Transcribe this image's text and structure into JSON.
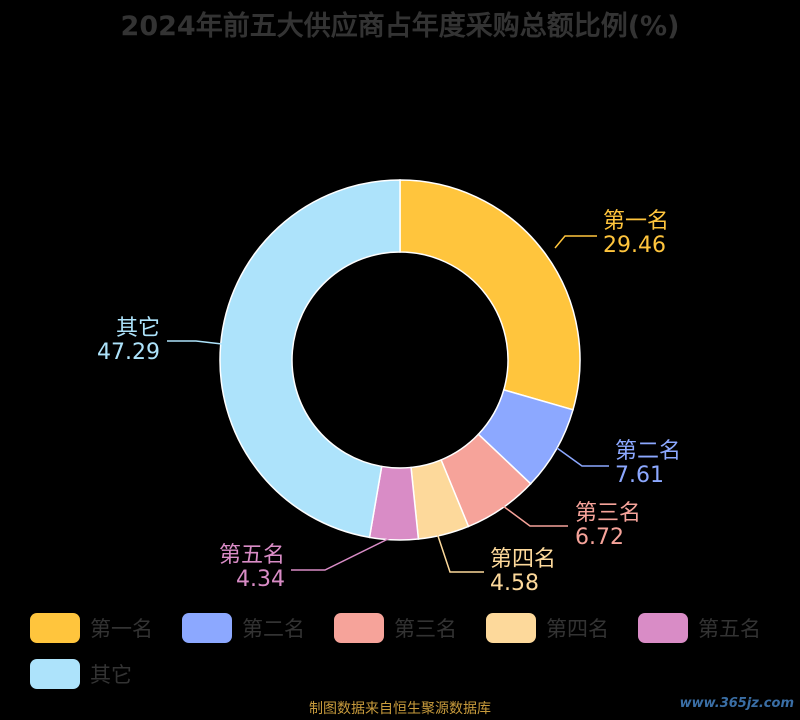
{
  "chart_data": {
    "type": "pie",
    "title": "2024年前五大供应商占年度采购总额比例(%)",
    "categories": [
      "第一名",
      "第二名",
      "第三名",
      "第四名",
      "第五名",
      "其它"
    ],
    "values": [
      29.46,
      7.61,
      6.72,
      4.58,
      4.34,
      47.29
    ],
    "colors": [
      "#ffc53d",
      "#8ca8ff",
      "#f6a39a",
      "#fdd99b",
      "#d98cc6",
      "#ade3fb"
    ],
    "donut": true,
    "legend": "bottom"
  },
  "footer": {
    "source": "制图数据来自恒生聚源数据库",
    "watermark": "www.365jz.com"
  }
}
